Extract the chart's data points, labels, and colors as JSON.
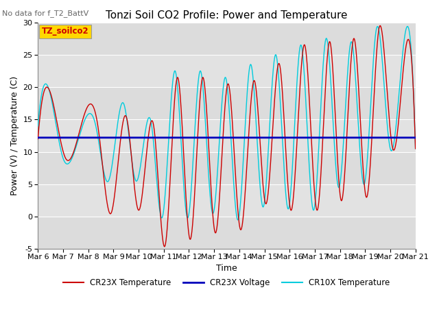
{
  "title": "Tonzi Soil CO2 Profile: Power and Temperature",
  "no_data_text": "No data for f_T2_BattV",
  "ylabel": "Power (V) / Temperature (C)",
  "xlabel": "Time",
  "ylim": [
    -5,
    30
  ],
  "yticks": [
    -5,
    0,
    5,
    10,
    15,
    20,
    25,
    30
  ],
  "xtick_labels": [
    "Mar 6",
    "Mar 7",
    "Mar 8",
    "Mar 9",
    "Mar 10",
    "Mar 11",
    "Mar 12",
    "Mar 13",
    "Mar 14",
    "Mar 15",
    "Mar 16",
    "Mar 17",
    "Mar 18",
    "Mar 19",
    "Mar 20",
    "Mar 21"
  ],
  "legend_box_text": "TZ_soilco2",
  "legend_box_color": "#FFD700",
  "legend_box_text_color": "#CC0000",
  "cr23x_temp_color": "#CC0000",
  "cr23x_volt_color": "#0000BB",
  "cr10x_temp_color": "#00CCDD",
  "background_color": "#DCDCDC",
  "grid_color": "#FFFFFF",
  "voltage_value": 12.2,
  "title_fontsize": 11,
  "axis_fontsize": 9,
  "tick_fontsize": 8
}
